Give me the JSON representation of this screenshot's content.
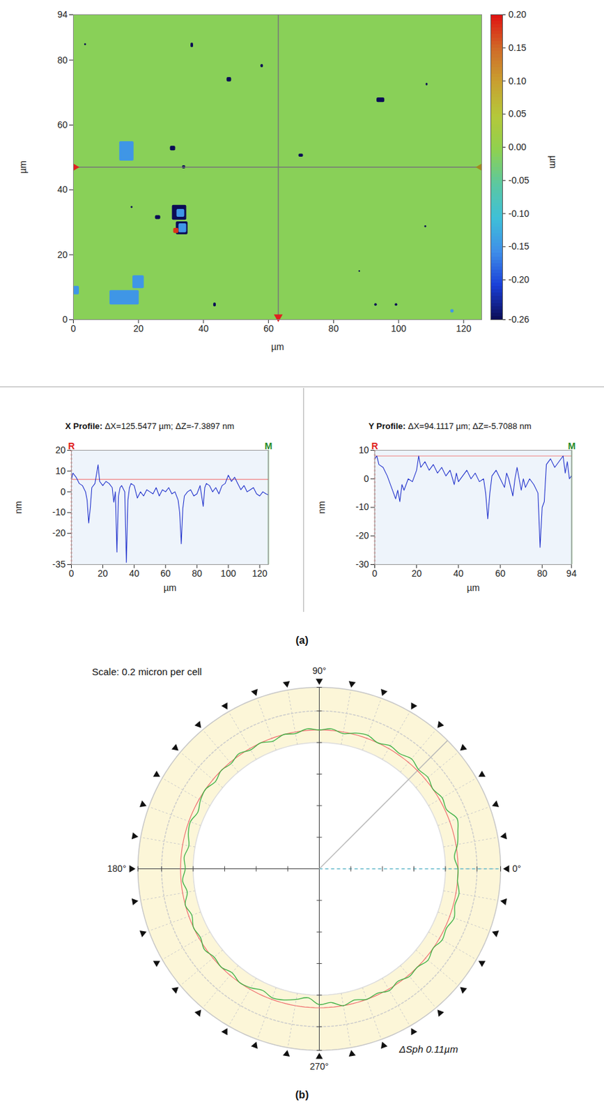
{
  "panel_labels": [
    "(a)",
    "(b)"
  ],
  "chart_data": [
    {
      "type": "heatmap",
      "xlabel": "µm",
      "ylabel": "µm",
      "xlim": [
        0,
        125.5477
      ],
      "ylim": [
        0,
        94
      ],
      "xticks": [
        0,
        20,
        40,
        60,
        80,
        100,
        120
      ],
      "yticks": [
        0,
        20,
        40,
        60,
        80,
        94
      ],
      "background_value": -0.01,
      "cells": [
        {
          "x": 16.4,
          "y": 51.9,
          "width": 4.4,
          "height": 6,
          "value": -0.15
        },
        {
          "x": 15.7,
          "y": 6.8,
          "width": 9,
          "height": 4.4,
          "value": -0.15
        },
        {
          "x": 20,
          "y": 11.6,
          "width": 3.5,
          "height": 4,
          "value": -0.15
        },
        {
          "x": 0.9,
          "y": 9,
          "width": 1.8,
          "height": 2.6,
          "value": -0.15
        },
        {
          "x": 32.6,
          "y": 33,
          "width": 4.4,
          "height": 4.6,
          "value": -0.26
        },
        {
          "x": 33,
          "y": 32.8,
          "width": 2.4,
          "height": 2.4,
          "value": -0.15
        },
        {
          "x": 33.4,
          "y": 28.2,
          "width": 3.6,
          "height": 4,
          "value": -0.26
        },
        {
          "x": 33.6,
          "y": 28.2,
          "width": 2.4,
          "height": 2.8,
          "value": -0.15
        },
        {
          "x": 31.6,
          "y": 27.4,
          "width": 1.6,
          "height": 1.6,
          "value": 0.18
        },
        {
          "x": 26,
          "y": 31.5,
          "width": 1.6,
          "height": 1.2,
          "value": -0.26
        },
        {
          "x": 30.6,
          "y": 52.8,
          "width": 1.6,
          "height": 1.4,
          "value": -0.26
        },
        {
          "x": 47.9,
          "y": 74,
          "width": 1.4,
          "height": 1.4,
          "value": -0.26
        },
        {
          "x": 36.5,
          "y": 84.6,
          "width": 0.8,
          "height": 1.4,
          "value": -0.26
        },
        {
          "x": 58,
          "y": 78.2,
          "width": 0.8,
          "height": 1,
          "value": -0.26
        },
        {
          "x": 94.5,
          "y": 67.7,
          "width": 2.4,
          "height": 1.4,
          "value": -0.26
        },
        {
          "x": 70,
          "y": 50.6,
          "width": 1.4,
          "height": 1,
          "value": -0.26
        },
        {
          "x": 43.5,
          "y": 4.6,
          "width": 0.8,
          "height": 1.2,
          "value": -0.26
        },
        {
          "x": 93,
          "y": 4.6,
          "width": 0.8,
          "height": 0.8,
          "value": -0.26
        },
        {
          "x": 99.3,
          "y": 4.6,
          "width": 0.8,
          "height": 0.8,
          "value": -0.26
        },
        {
          "x": 3.7,
          "y": 84.8,
          "width": 0.6,
          "height": 0.6,
          "value": -0.26
        },
        {
          "x": 108.7,
          "y": 72.5,
          "width": 0.6,
          "height": 0.8,
          "value": -0.26
        },
        {
          "x": 108.3,
          "y": 28.7,
          "width": 0.6,
          "height": 0.6,
          "value": -0.26
        },
        {
          "x": 34,
          "y": 47,
          "width": 1,
          "height": 1,
          "value": -0.26
        },
        {
          "x": 18,
          "y": 34.6,
          "width": 0.6,
          "height": 0.6,
          "value": -0.26
        },
        {
          "x": 88,
          "y": 14.9,
          "width": 0.5,
          "height": 0.5,
          "value": -0.26
        },
        {
          "x": 116.5,
          "y": 2.6,
          "width": 1,
          "height": 1,
          "value": -0.15
        }
      ],
      "colorbar": {
        "label": "µm",
        "range": [
          -0.26,
          0.2
        ],
        "ticks": [
          {
            "value": 0.2,
            "label": "0.20"
          },
          0.15,
          {
            "value": 0.1,
            "label": "0.10"
          },
          0.05,
          {
            "value": 0,
            "label": "0.00"
          },
          -0.05,
          {
            "value": -0.1,
            "label": "-0.10"
          },
          -0.15,
          {
            "value": -0.2,
            "label": "-0.20"
          },
          -0.26
        ]
      },
      "crosshair": {
        "x": 63,
        "y": 47
      }
    },
    {
      "type": "line",
      "title": "X Profile: ΔX=125.5477 µm; ΔZ=-7.3897 nm",
      "xlabel": "µm",
      "ylabel": "nm",
      "xlim": [
        0,
        125.5477
      ],
      "ylim": [
        -35,
        20
      ],
      "xticks": [
        0,
        20,
        40,
        60,
        80,
        100,
        120
      ],
      "yticks": [
        20,
        10,
        0,
        -10,
        -20,
        -35
      ],
      "grid": true,
      "color": "#2233cc",
      "reference_line": 6,
      "annotations": [
        {
          "text": "R",
          "color": "#e02020"
        },
        {
          "text": "M",
          "color": "#2a8a2a"
        }
      ],
      "x": [
        0,
        1,
        3,
        5,
        7,
        9,
        10,
        11,
        12,
        13,
        15,
        17,
        18,
        20,
        22,
        24,
        26,
        27,
        28,
        29,
        30,
        31,
        32,
        34,
        35,
        36,
        37,
        38,
        40,
        42,
        44,
        46,
        48,
        50,
        52,
        54,
        56,
        58,
        60,
        62,
        64,
        66,
        68,
        69,
        70,
        71,
        72,
        74,
        76,
        78,
        80,
        82,
        84,
        85,
        86,
        88,
        90,
        92,
        94,
        96,
        98,
        100,
        102,
        104,
        106,
        108,
        110,
        112,
        114,
        116,
        118,
        120,
        122,
        124,
        125.5
      ],
      "values": [
        6,
        9,
        7,
        4,
        3,
        0,
        -4,
        -15,
        -8,
        2,
        4,
        13,
        5,
        3,
        5,
        4,
        2,
        -5,
        0,
        -29,
        -2,
        2,
        3,
        0,
        -34,
        -4,
        2,
        4,
        3,
        -3,
        0,
        -2,
        1,
        0,
        -1,
        2,
        -2,
        1,
        0,
        2,
        -1,
        0,
        -4,
        -10,
        -25,
        -8,
        -2,
        0,
        1,
        -2,
        -1,
        3,
        -7,
        2,
        4,
        3,
        0,
        2,
        -1,
        3,
        4,
        8,
        5,
        7,
        4,
        1,
        3,
        0,
        1,
        2,
        -1,
        -2,
        0,
        -1,
        -1.5
      ]
    },
    {
      "type": "line",
      "title": "Y Profile: ΔX=94.1117 µm; ΔZ=-5.7088 nm",
      "xlabel": "µm",
      "ylabel": "nm",
      "xlim": [
        0,
        94.1117
      ],
      "ylim": [
        -30,
        10
      ],
      "xticks": [
        0,
        20,
        40,
        60,
        80,
        94
      ],
      "yticks": [
        10,
        0,
        -10,
        -20,
        -30
      ],
      "grid": true,
      "color": "#2233cc",
      "reference_line": 8,
      "annotations": [
        {
          "text": "R",
          "color": "#e02020"
        },
        {
          "text": "M",
          "color": "#2a8a2a"
        }
      ],
      "x": [
        0,
        1,
        2,
        4,
        6,
        8,
        10,
        11,
        12,
        13,
        14,
        16,
        18,
        20,
        21,
        22,
        24,
        26,
        28,
        30,
        32,
        34,
        36,
        38,
        39,
        40,
        42,
        44,
        46,
        48,
        50,
        52,
        53,
        54,
        55,
        56,
        58,
        60,
        62,
        63,
        64,
        66,
        67,
        68,
        70,
        71,
        72,
        74,
        76,
        78,
        79,
        80,
        81,
        82,
        84,
        86,
        88,
        90,
        91,
        92,
        93,
        94
      ],
      "values": [
        7,
        8,
        5,
        4,
        1,
        -3,
        -7,
        -4,
        -8,
        -2,
        -4,
        0,
        -1,
        3,
        8,
        4,
        6,
        3,
        5,
        2,
        4,
        1,
        3,
        -2,
        2,
        -1,
        1,
        3,
        0,
        2,
        -1,
        0,
        -5,
        -14,
        -5,
        1,
        3,
        0,
        -3,
        2,
        0,
        -6,
        0,
        4,
        -4,
        0,
        -3,
        0,
        -2,
        -5,
        -24,
        -10,
        -8,
        5,
        7,
        4,
        6,
        8,
        2,
        6,
        0,
        1
      ]
    },
    {
      "type": "polar",
      "title": "Scale: 0.2 micron per cell",
      "annotation": "ΔSph 0.11µm",
      "rlim": [
        0,
        1.15
      ],
      "rticks": [
        0.2,
        0.4,
        0.6,
        0.8,
        1
      ],
      "tick_labels": false,
      "inner_radius": 0.8,
      "cursor_angle": 45,
      "angle_labels": [
        {
          "angle": 90,
          "label": "90°"
        },
        {
          "angle": 180,
          "label": "180°"
        },
        {
          "angle": 0,
          "label": "0°"
        },
        {
          "angle": 270,
          "label": "270°"
        }
      ],
      "reference": {
        "radius": 0.88,
        "color": "#f07070"
      },
      "series": [
        {
          "color": "#3cb043",
          "angles": [
            0,
            5,
            10,
            15,
            20,
            25,
            30,
            35,
            40,
            45,
            50,
            55,
            60,
            65,
            70,
            75,
            80,
            85,
            90,
            95,
            100,
            105,
            110,
            115,
            120,
            125,
            130,
            135,
            140,
            145,
            150,
            155,
            160,
            165,
            170,
            175,
            180,
            185,
            190,
            195,
            200,
            205,
            210,
            215,
            220,
            225,
            230,
            235,
            240,
            245,
            250,
            255,
            260,
            265,
            270,
            275,
            280,
            285,
            290,
            295,
            300,
            305,
            310,
            315,
            320,
            325,
            330,
            335,
            340,
            345,
            350,
            355
          ],
          "values": [
            0.88,
            0.86,
            0.89,
            0.91,
            0.93,
            0.89,
            0.9,
            0.88,
            0.9,
            0.89,
            0.91,
            0.89,
            0.9,
            0.88,
            0.9,
            0.89,
            0.87,
            0.89,
            0.88,
            0.89,
            0.87,
            0.88,
            0.86,
            0.88,
            0.87,
            0.89,
            0.87,
            0.88,
            0.86,
            0.88,
            0.87,
            0.85,
            0.87,
            0.86,
            0.84,
            0.86,
            0.85,
            0.87,
            0.85,
            0.88,
            0.86,
            0.88,
            0.87,
            0.89,
            0.87,
            0.88,
            0.86,
            0.88,
            0.87,
            0.85,
            0.87,
            0.86,
            0.84,
            0.82,
            0.86,
            0.85,
            0.88,
            0.86,
            0.88,
            0.87,
            0.89,
            0.87,
            0.89,
            0.88,
            0.9,
            0.88,
            0.9,
            0.89,
            0.91,
            0.89,
            0.9,
            0.88
          ]
        }
      ]
    }
  ]
}
